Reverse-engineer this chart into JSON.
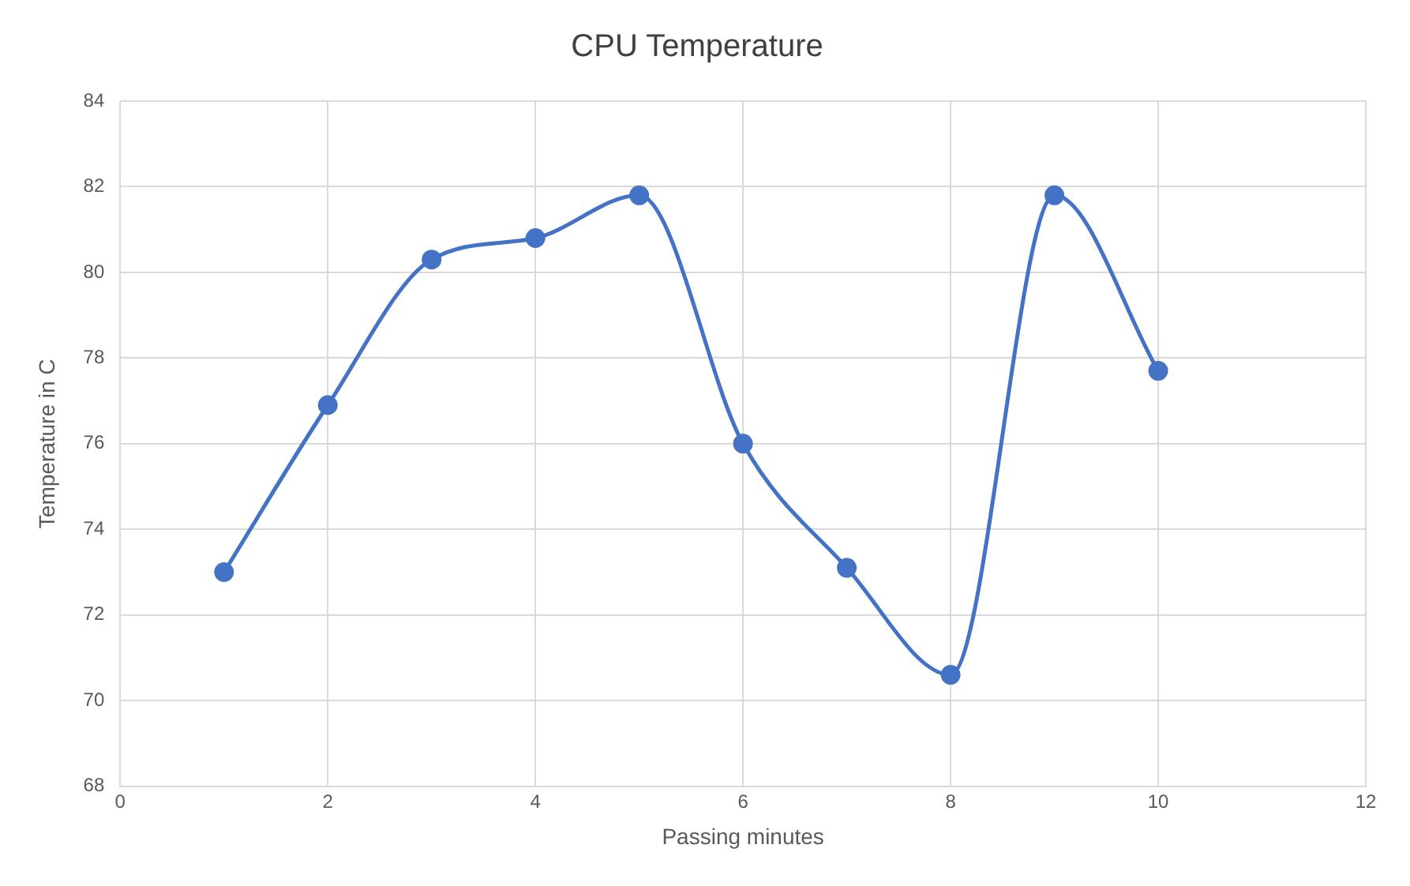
{
  "chart_data": {
    "type": "line",
    "title": "CPU Temperature",
    "xlabel": "Passing minutes",
    "ylabel": "Temperature in C",
    "x": [
      1,
      2,
      3,
      4,
      5,
      6,
      7,
      8,
      9,
      10
    ],
    "series": [
      {
        "color": "#4472c4",
        "values": [
          73.0,
          76.9,
          80.3,
          80.8,
          81.8,
          76.0,
          73.1,
          70.6,
          81.8,
          77.7
        ]
      }
    ],
    "xlim": [
      0,
      12
    ],
    "xticks": [
      0,
      2,
      4,
      6,
      8,
      10,
      12
    ],
    "ylim": [
      68,
      84
    ],
    "yticks": [
      68,
      70,
      72,
      74,
      76,
      78,
      80,
      82,
      84
    ],
    "grid": true,
    "legend": false,
    "marker": "circle",
    "line_style": "solid"
  }
}
